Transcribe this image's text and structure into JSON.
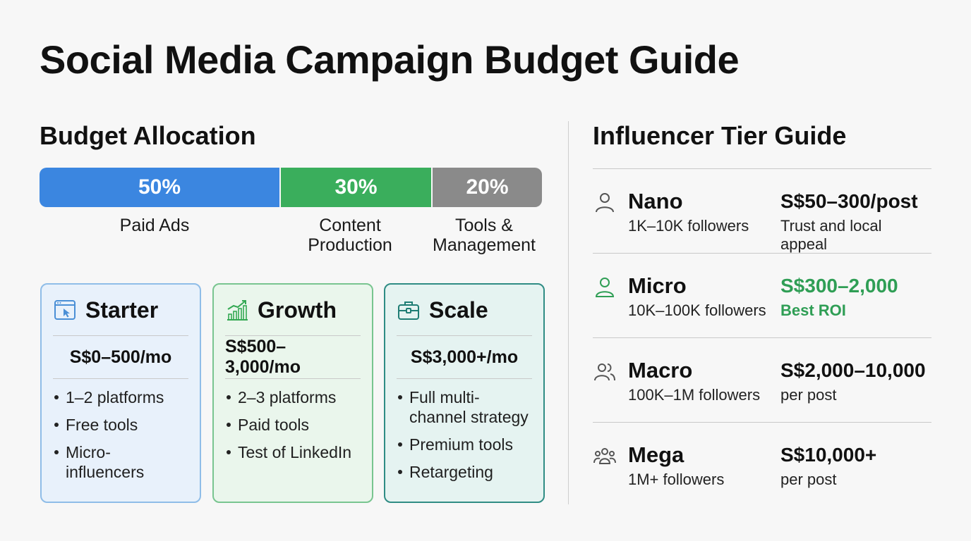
{
  "title": "Social Media Campaign Budget Guide",
  "budget": {
    "heading": "Budget Allocation",
    "segments": [
      {
        "percent_label": "50%",
        "value": 50,
        "label": "Paid Ads",
        "color": "#3b86e0"
      },
      {
        "percent_label": "30%",
        "value": 30,
        "label": "Content\nProduction",
        "color": "#3aae5c"
      },
      {
        "percent_label": "20%",
        "value": 20,
        "label": "Tools &\nManagement",
        "color": "#8a8a8a"
      }
    ]
  },
  "tiers": [
    {
      "name": "Starter",
      "icon": "browser-cursor-icon",
      "price": "S$0–500/mo",
      "bg": "#e8f1fb",
      "border": "#8fbde8",
      "accent": "#4a8fd6",
      "items": [
        "1–2 platforms",
        "Free tools",
        "Micro-influencers"
      ]
    },
    {
      "name": "Growth",
      "icon": "growth-chart-icon",
      "price": "S$500–3,000/mo",
      "bg": "#eaf6ec",
      "border": "#79c590",
      "accent": "#34a853",
      "items": [
        "2–3 platforms",
        "Paid tools",
        "Test of LinkedIn"
      ]
    },
    {
      "name": "Scale",
      "icon": "briefcase-icon",
      "price": "S$3,000+/mo",
      "bg": "#e5f3f1",
      "border": "#2f8c84",
      "accent": "#1f7d74",
      "items": [
        "Full multi-channel strategy",
        "Premium tools",
        "Retargeting"
      ]
    }
  ],
  "influencers": {
    "heading": "Influencer Tier Guide",
    "rows": [
      {
        "name": "Nano",
        "followers": "1K–10K followers",
        "price": "S$50–300/post",
        "note": "Trust and local appeal",
        "icon": "person-icon",
        "highlight": false
      },
      {
        "name": "Micro",
        "followers": "10K–100K followers",
        "price": "S$300–2,000",
        "note": "Best ROI",
        "icon": "person-icon",
        "highlight": true
      },
      {
        "name": "Macro",
        "followers": "100K–1M followers",
        "price": "S$2,000–10,000",
        "note": "per post",
        "icon": "two-people-icon",
        "highlight": false
      },
      {
        "name": "Mega",
        "followers": "1M+ followers",
        "price": "S$10,000+",
        "note": "per post",
        "icon": "group-icon",
        "highlight": false
      }
    ],
    "highlight_color": "#2f9e55"
  }
}
